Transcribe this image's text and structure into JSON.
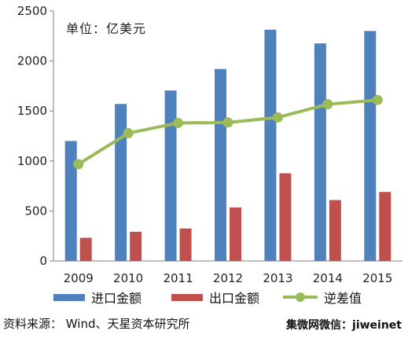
{
  "chart_data": {
    "type": "bar",
    "unit_label": "单位：亿美元",
    "categories": [
      "2009",
      "2010",
      "2011",
      "2012",
      "2013",
      "2014",
      "2015"
    ],
    "series": [
      {
        "name": "进口金额",
        "kind": "bar",
        "color": "#4F81BD",
        "values": [
          1200,
          1570,
          1705,
          1920,
          2313,
          2176,
          2300
        ]
      },
      {
        "name": "出口金额",
        "kind": "bar",
        "color": "#C0504D",
        "values": [
          232,
          292,
          325,
          535,
          877,
          609,
          690
        ]
      },
      {
        "name": "逆差值",
        "kind": "line",
        "color": "#9BBB59",
        "values": [
          968,
          1278,
          1380,
          1385,
          1436,
          1567,
          1610
        ]
      }
    ],
    "yticks": [
      0,
      500,
      1000,
      1500,
      2000,
      2500
    ],
    "ylim": [
      0,
      2500
    ],
    "grid": false,
    "legend_position": "bottom"
  },
  "footer": {
    "source": "资料来源：  Wind、天星资本研究所",
    "brand": "集微网微信：jiweinet"
  }
}
